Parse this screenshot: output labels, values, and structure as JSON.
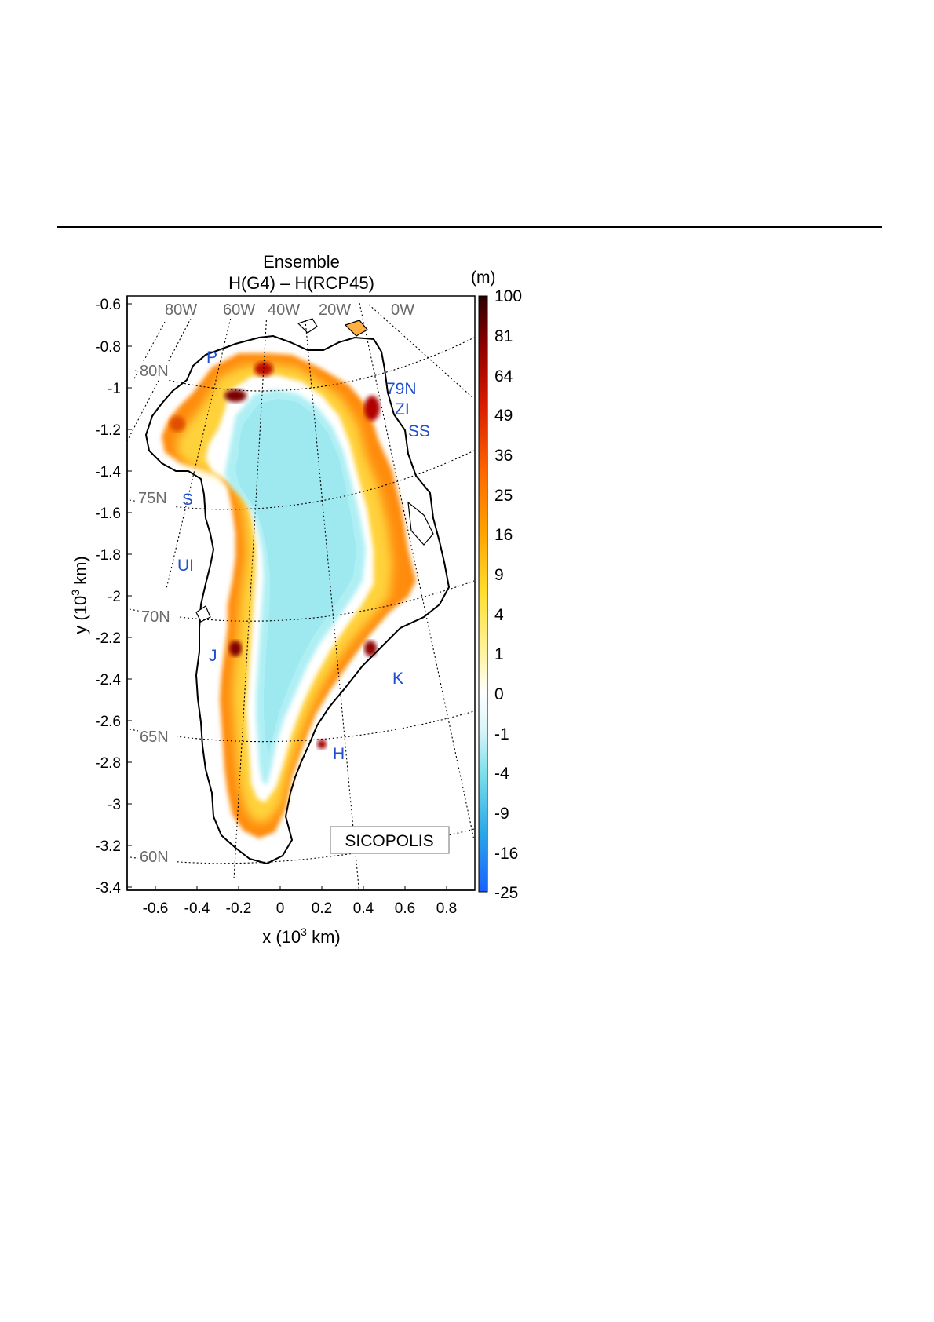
{
  "title": {
    "line1": "Ensemble",
    "line2": "H(G4) – H(RCP45)"
  },
  "axes": {
    "x_label_base": "x (10",
    "x_label_exp": "3",
    "x_label_unit": " km)",
    "y_label_base": "y (10",
    "y_label_exp": "3",
    "y_label_unit": " km)",
    "x_ticks": [
      "-0.6",
      "-0.4",
      "-0.2",
      "0",
      "0.2",
      "0.4",
      "0.6",
      "0.8"
    ],
    "y_ticks": [
      "-0.6",
      "-0.8",
      "-1",
      "-1.2",
      "-1.4",
      "-1.6",
      "-1.8",
      "-2",
      "-2.2",
      "-2.4",
      "-2.6",
      "-2.8",
      "-3",
      "-3.2",
      "-3.4"
    ],
    "x_range": [
      -0.7,
      0.95
    ],
    "y_range": [
      -3.45,
      -0.58
    ]
  },
  "graticule": {
    "longitudes": [
      "80W",
      "60W",
      "40W",
      "20W",
      "0W"
    ],
    "latitudes": [
      "80N",
      "75N",
      "70N",
      "65N",
      "60N"
    ]
  },
  "places": [
    "P",
    "79N",
    "ZI",
    "SS",
    "S",
    "UI",
    "J",
    "K",
    "H"
  ],
  "colorbar": {
    "unit": "(m)",
    "ticks": [
      "100",
      "81",
      "64",
      "49",
      "36",
      "25",
      "16",
      "9",
      "4",
      "1",
      "0",
      "-1",
      "-4",
      "-9",
      "-16",
      "-25"
    ]
  },
  "model_label": "SICOPOLIS",
  "colors": {
    "place_label": "#1f4fd1",
    "graticule_label": "#6a6a6a"
  }
}
